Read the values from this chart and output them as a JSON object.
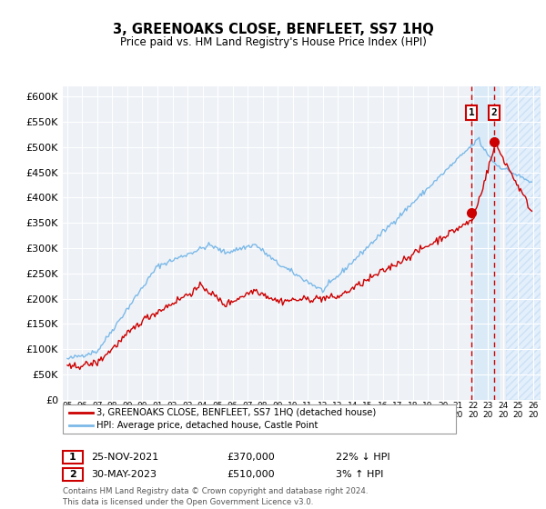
{
  "title": "3, GREENOAKS CLOSE, BENFLEET, SS7 1HQ",
  "subtitle": "Price paid vs. HM Land Registry's House Price Index (HPI)",
  "ylabel_ticks": [
    "£0",
    "£50K",
    "£100K",
    "£150K",
    "£200K",
    "£250K",
    "£300K",
    "£350K",
    "£400K",
    "£450K",
    "£500K",
    "£550K",
    "£600K"
  ],
  "ytick_vals": [
    0,
    50000,
    100000,
    150000,
    200000,
    250000,
    300000,
    350000,
    400000,
    450000,
    500000,
    550000,
    600000
  ],
  "ylim": [
    0,
    620000
  ],
  "xlim_min": 1994.7,
  "xlim_max": 2026.5,
  "sale1_x": 2021.9,
  "sale1_y": 370000,
  "sale2_x": 2023.4,
  "sale2_y": 510000,
  "hpi_color": "#7cb9e8",
  "price_color": "#cc0000",
  "vline_color": "#cc0000",
  "grid_color": "white",
  "bg_color": "#eef2f7",
  "legend_entry1": "3, GREENOAKS CLOSE, BENFLEET, SS7 1HQ (detached house)",
  "legend_entry2": "HPI: Average price, detached house, Castle Point",
  "table_row1_num": "1",
  "table_row1_date": "25-NOV-2021",
  "table_row1_price": "£370,000",
  "table_row1_hpi": "22% ↓ HPI",
  "table_row2_num": "2",
  "table_row2_date": "30-MAY-2023",
  "table_row2_price": "£510,000",
  "table_row2_hpi": "3% ↑ HPI",
  "footnote": "Contains HM Land Registry data © Crown copyright and database right 2024.\nThis data is licensed under the Open Government Licence v3.0."
}
